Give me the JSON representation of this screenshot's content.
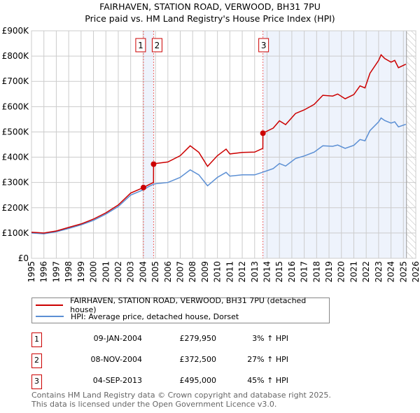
{
  "title_line1": "FAIRHAVEN, STATION ROAD, VERWOOD, BH31 7PU",
  "title_line2": "Price paid vs. HM Land Registry's House Price Index (HPI)",
  "chart_data": {
    "type": "line",
    "title": "FAIRHAVEN, STATION ROAD, VERWOOD, BH31 7PU — Price paid vs. HM Land Registry's House Price Index (HPI)",
    "xlim": [
      1995,
      2026
    ],
    "ylim": [
      0,
      900000
    ],
    "x_ticks": [
      "1995",
      "1996",
      "1997",
      "1998",
      "1999",
      "2000",
      "2001",
      "2002",
      "2003",
      "2004",
      "2005",
      "2006",
      "2007",
      "2008",
      "2009",
      "2010",
      "2011",
      "2012",
      "2013",
      "2014",
      "2015",
      "2016",
      "2017",
      "2018",
      "2019",
      "2020",
      "2021",
      "2022",
      "2023",
      "2024",
      "2025",
      "2026"
    ],
    "y_ticks": [
      {
        "v": 0,
        "label": "£0"
      },
      {
        "v": 100000,
        "label": "£100K"
      },
      {
        "v": 200000,
        "label": "£200K"
      },
      {
        "v": 300000,
        "label": "£300K"
      },
      {
        "v": 400000,
        "label": "£400K"
      },
      {
        "v": 500000,
        "label": "£500K"
      },
      {
        "v": 600000,
        "label": "£600K"
      },
      {
        "v": 700000,
        "label": "£700K"
      },
      {
        "v": 800000,
        "label": "£800K"
      },
      {
        "v": 900000,
        "label": "£900K"
      }
    ],
    "grid": true,
    "hatched_from": 2025.25,
    "colors": {
      "property": "#cc0000",
      "hpi": "#5b8fd4",
      "shade": "#eef3fc"
    },
    "series": [
      {
        "name": "FAIRHAVEN, STATION ROAD, VERWOOD, BH31 7PU (detached house)",
        "key": "property",
        "x": [
          1995,
          1996,
          1997,
          1998,
          1999,
          2000,
          2001,
          2002,
          2003,
          2004.03,
          2004.5,
          2004.84,
          2004.85,
          2005,
          2006,
          2007,
          2007.8,
          2008.5,
          2009.2,
          2010,
          2010.7,
          2011,
          2012,
          2013,
          2013.66,
          2013.67,
          2014.5,
          2015,
          2015.5,
          2016.3,
          2017,
          2017.8,
          2018.5,
          2019.3,
          2019.7,
          2020.3,
          2021,
          2021.5,
          2021.9,
          2022.3,
          2023,
          2023.2,
          2023.5,
          2024,
          2024.3,
          2024.6,
          2025.2
        ],
        "y": [
          103000,
          100000,
          108000,
          122000,
          136000,
          155000,
          180000,
          211000,
          258000,
          279950,
          292000,
          300000,
          372500,
          375000,
          381000,
          406000,
          445000,
          419000,
          364000,
          406000,
          432000,
          413000,
          419000,
          420000,
          435000,
          495000,
          515000,
          544000,
          529000,
          573000,
          587000,
          609000,
          645000,
          642000,
          650000,
          631000,
          648000,
          682000,
          674000,
          732000,
          783000,
          805000,
          790000,
          776000,
          783000,
          754000,
          768000
        ]
      },
      {
        "name": "HPI: Average price, detached house, Dorset",
        "key": "hpi",
        "x": [
          1995,
          1996,
          1997,
          1998,
          1999,
          2000,
          2001,
          2002,
          2003,
          2004.03,
          2004.5,
          2004.85,
          2005,
          2006,
          2007,
          2007.8,
          2008.5,
          2009.2,
          2010,
          2010.7,
          2011,
          2012,
          2013,
          2013.67,
          2014.5,
          2015,
          2015.5,
          2016.3,
          2017,
          2017.8,
          2018.5,
          2019.3,
          2019.7,
          2020.3,
          2021,
          2021.5,
          2021.9,
          2022.3,
          2023,
          2023.2,
          2023.5,
          2024,
          2024.3,
          2024.6,
          2025.2
        ],
        "y": [
          100000,
          97000,
          105000,
          118000,
          132000,
          150000,
          175000,
          205000,
          250000,
          271000,
          285000,
          293000,
          295000,
          300000,
          320000,
          350000,
          330000,
          287000,
          320000,
          340000,
          325000,
          330000,
          330000,
          341000,
          355000,
          375000,
          365000,
          395000,
          405000,
          420000,
          445000,
          443000,
          448000,
          435000,
          447000,
          470000,
          465000,
          505000,
          540000,
          555000,
          545000,
          535000,
          540000,
          520000,
          530000
        ]
      }
    ],
    "sales": [
      {
        "n": "1",
        "x": 2004.03,
        "price": 279950
      },
      {
        "n": "2",
        "x": 2004.85,
        "price": 372500
      },
      {
        "n": "3",
        "x": 2013.67,
        "price": 495000
      }
    ]
  },
  "legend": {
    "property": "FAIRHAVEN, STATION ROAD, VERWOOD, BH31 7PU (detached house)",
    "hpi": "HPI: Average price, detached house, Dorset"
  },
  "transactions": [
    {
      "n": "1",
      "date": "09-JAN-2004",
      "price": "£279,950",
      "hpi": "3% ↑ HPI"
    },
    {
      "n": "2",
      "date": "08-NOV-2004",
      "price": "£372,500",
      "hpi": "27% ↑ HPI"
    },
    {
      "n": "3",
      "date": "04-SEP-2013",
      "price": "£495,000",
      "hpi": "45% ↑ HPI"
    }
  ],
  "footer": {
    "line1": "Contains HM Land Registry data © Crown copyright and database right 2025.",
    "line2": "This data is licensed under the Open Government Licence v3.0."
  }
}
